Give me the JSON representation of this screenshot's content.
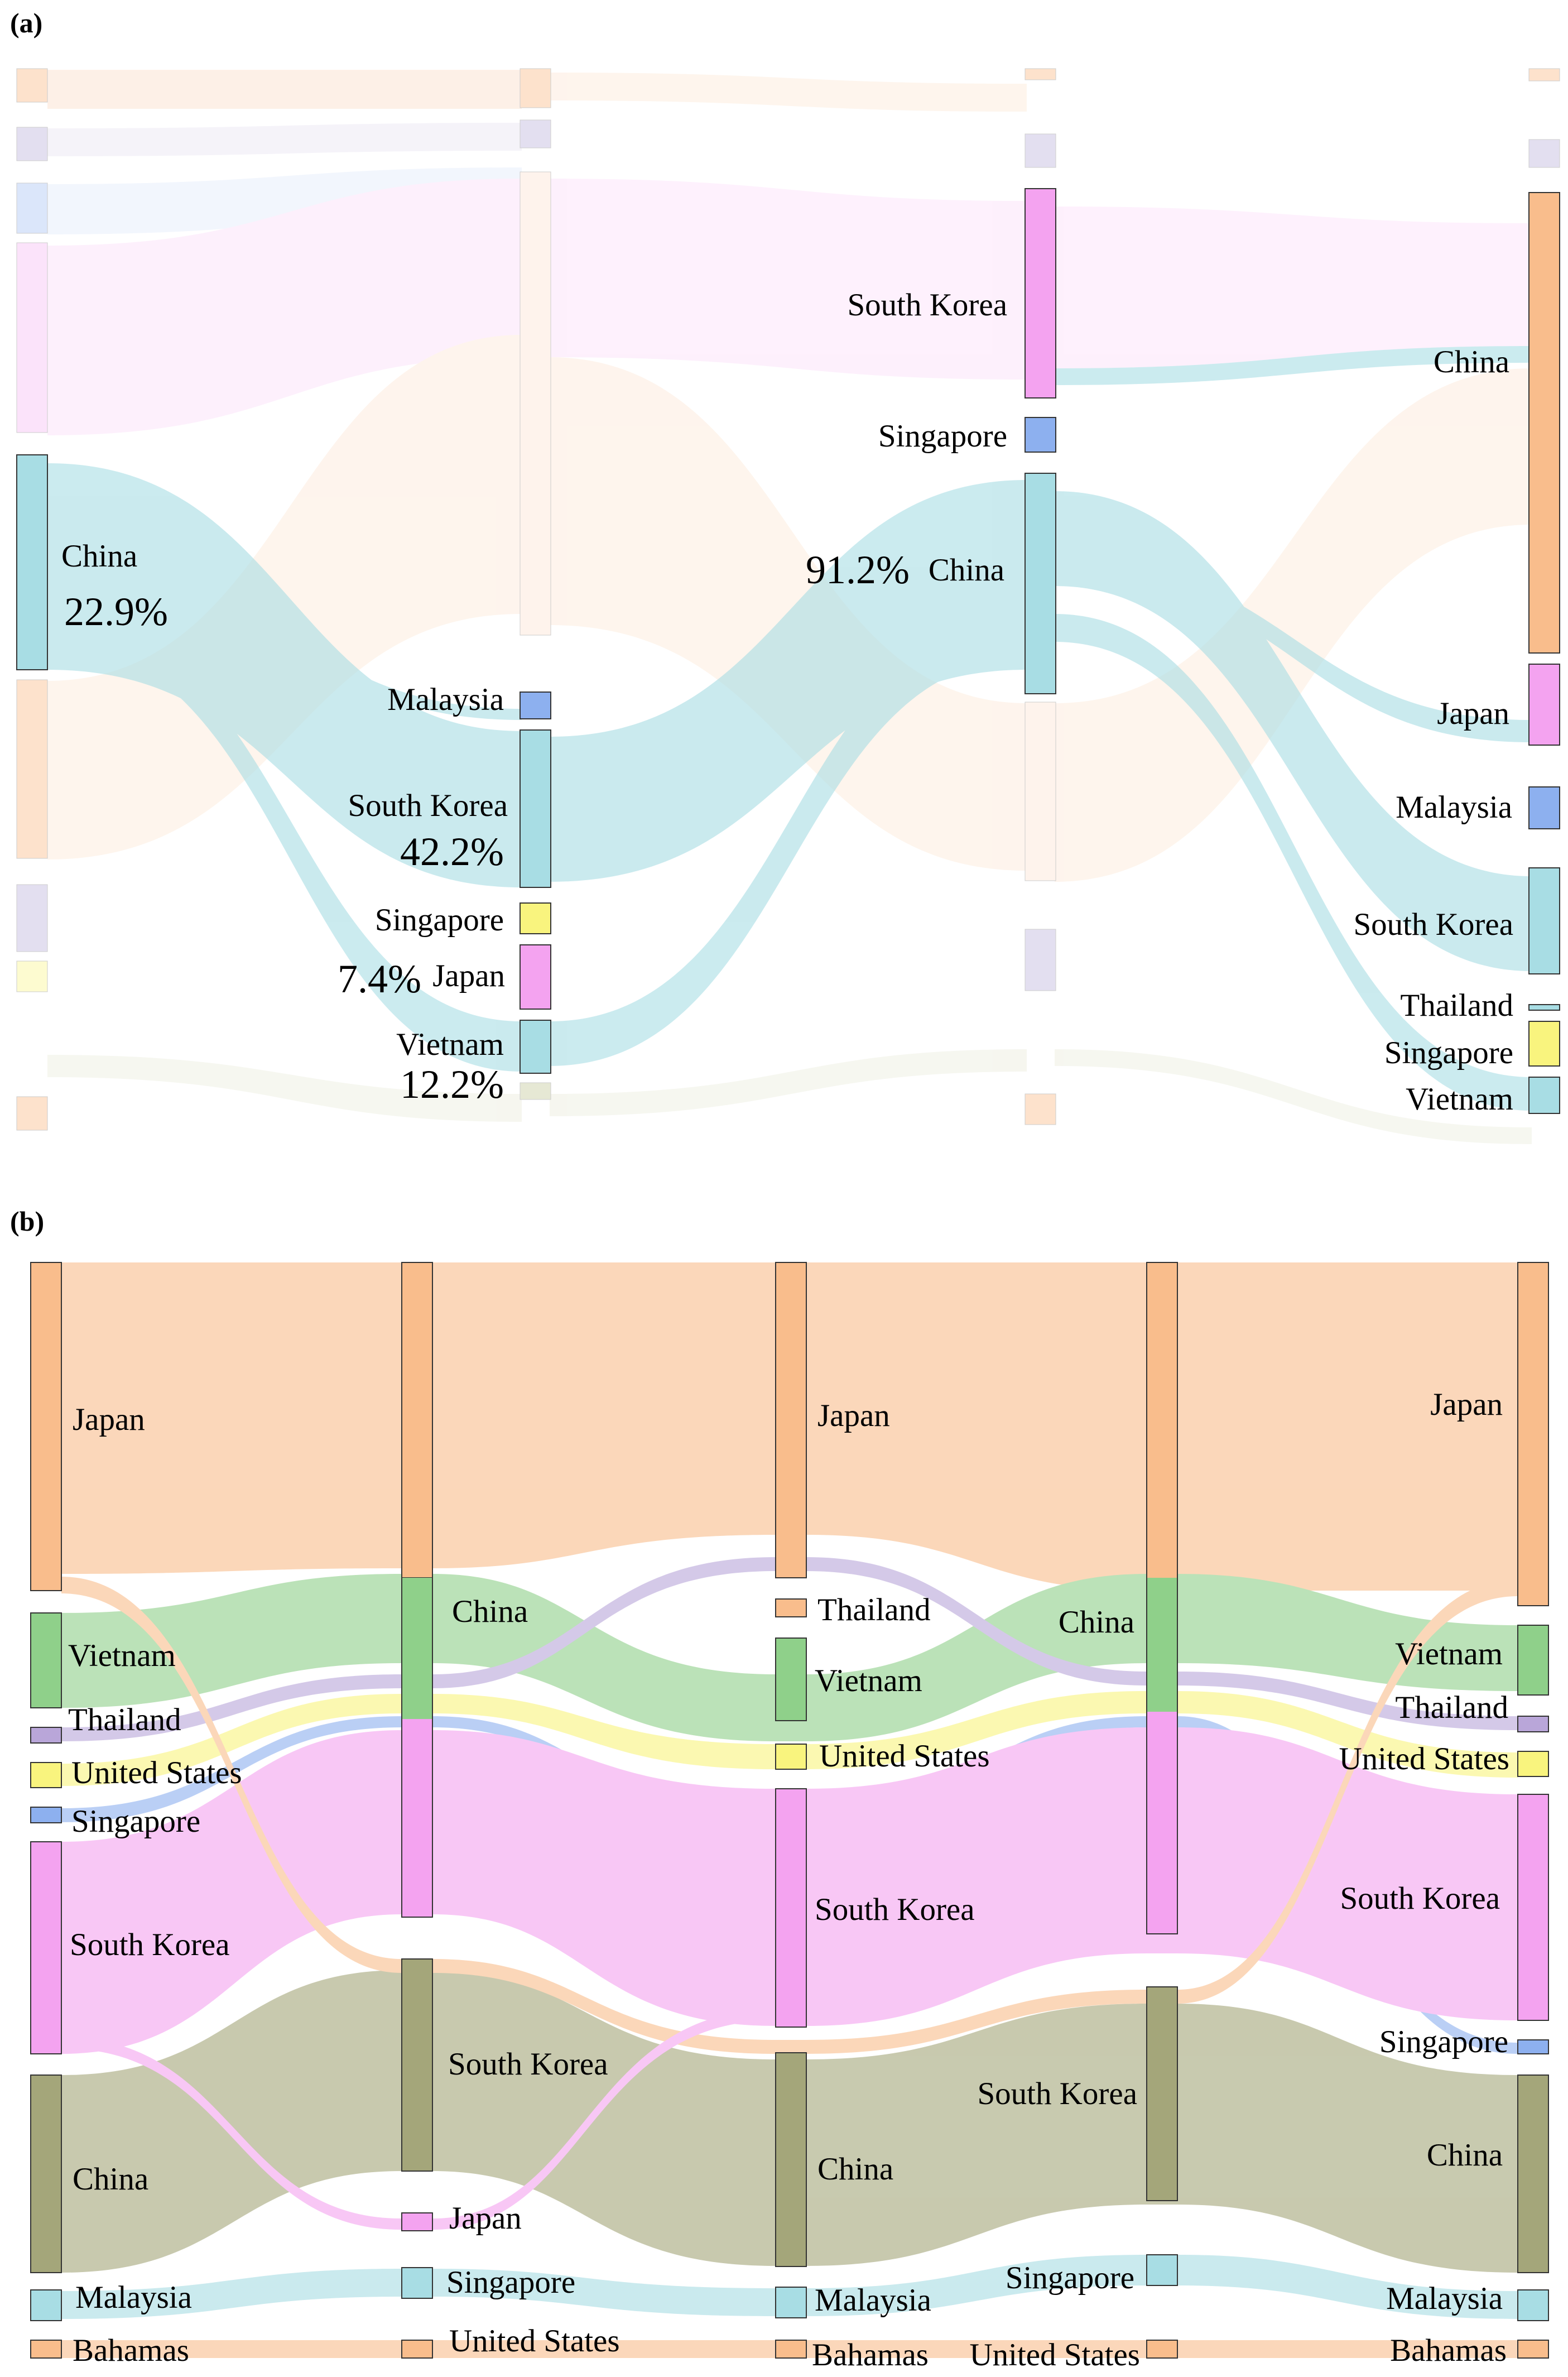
{
  "panels": [
    {
      "label": "(a)",
      "columns": [
        {
          "nodes": [
            {
              "name": "China",
              "pct": "22.9%"
            }
          ]
        },
        {
          "nodes": [
            {
              "name": "Malaysia"
            },
            {
              "name": "South Korea",
              "pct": "42.2%"
            },
            {
              "name": "Singapore"
            },
            {
              "name": "Japan",
              "pct": "7.4%"
            },
            {
              "name": "Vietnam",
              "pct": "12.2%"
            }
          ]
        },
        {
          "nodes": [
            {
              "name": "South Korea"
            },
            {
              "name": "Singapore"
            },
            {
              "name": "China",
              "pct": "91.2%"
            }
          ]
        },
        {
          "nodes": [
            {
              "name": "China"
            },
            {
              "name": "Japan"
            },
            {
              "name": "Malaysia"
            },
            {
              "name": "South Korea"
            },
            {
              "name": "Thailand"
            },
            {
              "name": "Singapore"
            },
            {
              "name": "Vietnam"
            }
          ]
        }
      ]
    },
    {
      "label": "(b)",
      "columns": [
        {
          "nodes": [
            "Japan",
            "Vietnam",
            "Thailand",
            "United States",
            "Singapore",
            "South Korea",
            "China",
            "Malaysia",
            "Bahamas"
          ]
        },
        {
          "nodes": [
            "China",
            "South Korea",
            "Japan",
            "Singapore",
            "United States"
          ]
        },
        {
          "nodes": [
            "Japan",
            "Thailand",
            "Vietnam",
            "United States",
            "South Korea",
            "China",
            "Malaysia",
            "Bahamas"
          ]
        },
        {
          "nodes": [
            "China",
            "South Korea",
            "Singapore",
            "United States"
          ]
        },
        {
          "nodes": [
            "Japan",
            "Vietnam",
            "Thailand",
            "United States",
            "South Korea",
            "Singapore",
            "China",
            "Malaysia",
            "Bahamas"
          ]
        }
      ]
    }
  ],
  "colors": {
    "japan": "#f9bd8c",
    "vietnam": "#8fd08a",
    "thailand": "#b9a6d9",
    "united_states": "#f9f47e",
    "singapore": "#8db0ef",
    "south_korea": "#f4a3f0",
    "china_b": "#a4a67a",
    "malaysia": "#a8dde4",
    "china_a": "#a8dde4",
    "bahamas": "#f9bd8c"
  }
}
